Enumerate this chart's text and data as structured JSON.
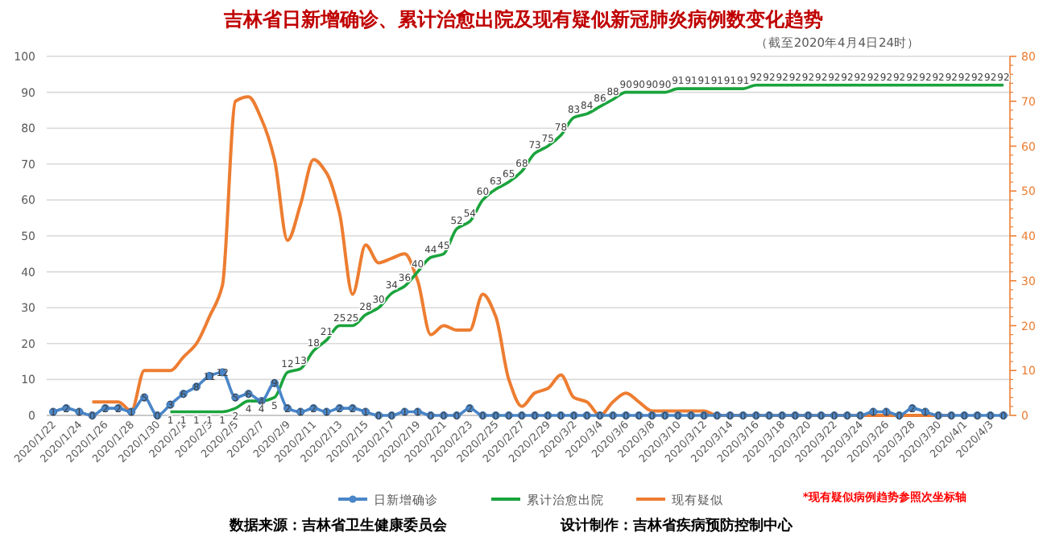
{
  "chart_data": {
    "type": "line",
    "title": "吉林省日新增确诊、累计治愈出院及现有疑似新冠肺炎病例数变化趋势",
    "subtitle": "（截至2020年4月4日24时）",
    "categories": [
      "2020/1/22",
      null,
      "2020/1/24",
      null,
      "2020/1/26",
      null,
      "2020/1/28",
      null,
      "2020/1/30",
      null,
      "2020/2/1",
      null,
      "2020/2/3",
      null,
      "2020/2/5",
      null,
      "2020/2/7",
      null,
      "2020/2/9",
      null,
      "2020/2/11",
      null,
      "2020/2/13",
      null,
      "2020/2/15",
      null,
      "2020/2/17",
      null,
      "2020/2/19",
      null,
      "2020/2/21",
      null,
      "2020/2/23",
      null,
      "2020/2/25",
      null,
      "2020/2/27",
      null,
      "2020/2/29",
      null,
      "2020/3/2",
      null,
      "2020/3/4",
      null,
      "2020/3/6",
      null,
      "2020/3/8",
      null,
      "2020/3/10",
      null,
      "2020/3/12",
      null,
      "2020/3/14",
      null,
      "2020/3/16",
      null,
      "2020/3/18",
      null,
      "2020/3/20",
      null,
      "2020/3/22",
      null,
      "2020/3/24",
      null,
      "2020/3/26",
      null,
      "2020/3/28",
      null,
      "2020/3/30",
      null,
      "2020/4/1",
      null,
      "2020/4/3",
      null
    ],
    "series": [
      {
        "name": "日新增确诊",
        "color": "#4a86c8",
        "marker": "circle",
        "data_labels": true,
        "values": [
          1,
          2,
          1,
          0,
          2,
          2,
          1,
          5,
          0,
          3,
          6,
          8,
          11,
          12,
          5,
          6,
          4,
          9,
          2,
          1,
          2,
          1,
          2,
          2,
          1,
          0,
          0,
          1,
          1,
          0,
          0,
          0,
          2,
          0,
          0,
          0,
          0,
          0,
          0,
          0,
          0,
          0,
          0,
          0,
          0,
          0,
          0,
          0,
          0,
          0,
          0,
          0,
          0,
          0,
          0,
          0,
          0,
          0,
          0,
          0,
          0,
          0,
          0,
          1,
          1,
          0,
          2,
          1,
          0,
          0,
          0,
          0,
          0,
          0
        ]
      },
      {
        "name": "累计治愈出院",
        "color": "#1aa33c",
        "marker": "none",
        "data_labels": true,
        "values": [
          null,
          null,
          null,
          null,
          null,
          null,
          null,
          null,
          null,
          1,
          1,
          1,
          1,
          1,
          2,
          4,
          4,
          5,
          12,
          13,
          18,
          21,
          25,
          25,
          28,
          30,
          34,
          36,
          40,
          44,
          45,
          52,
          54,
          60,
          63,
          65,
          68,
          73,
          75,
          78,
          83,
          84,
          86,
          88,
          90,
          90,
          90,
          90,
          91,
          91,
          91,
          91,
          91,
          91,
          92,
          92,
          92,
          92,
          92,
          92,
          92,
          92,
          92,
          92,
          92,
          92,
          92,
          92,
          92,
          92,
          92,
          92,
          92,
          92
        ]
      },
      {
        "name": "现有疑似",
        "color": "#ed7d31",
        "marker": "none",
        "data_labels": false,
        "axis": "y2",
        "values": [
          null,
          null,
          null,
          3,
          3,
          3,
          1,
          10,
          10,
          10,
          13,
          16,
          22,
          29,
          70,
          71,
          66,
          57,
          39,
          47,
          57,
          54,
          45,
          27,
          38,
          34,
          35,
          36,
          30,
          18,
          20,
          19,
          19,
          27,
          22,
          8,
          2,
          5,
          6,
          9,
          4,
          3,
          0,
          3,
          5,
          3,
          1,
          1,
          1,
          1,
          1,
          0,
          0,
          0,
          0,
          0,
          0,
          0,
          0,
          0,
          0,
          0,
          0,
          0,
          0,
          0,
          0,
          0,
          0,
          0,
          null,
          null,
          null,
          null
        ]
      }
    ],
    "ylim": [
      0,
      100
    ],
    "yticks": [
      0,
      10,
      20,
      30,
      40,
      50,
      60,
      70,
      80,
      90,
      100
    ],
    "y2lim": [
      0,
      80
    ],
    "y2ticks": [
      0,
      10,
      20,
      30,
      40,
      50,
      60,
      70,
      80
    ],
    "grid": "y",
    "legend": "bottom",
    "annotations": [
      "*现有疑似病例趋势参照次坐标轴",
      "数据来源：吉林省卫生健康委员会",
      "设计制作：吉林省疾病预防控制中心"
    ]
  }
}
